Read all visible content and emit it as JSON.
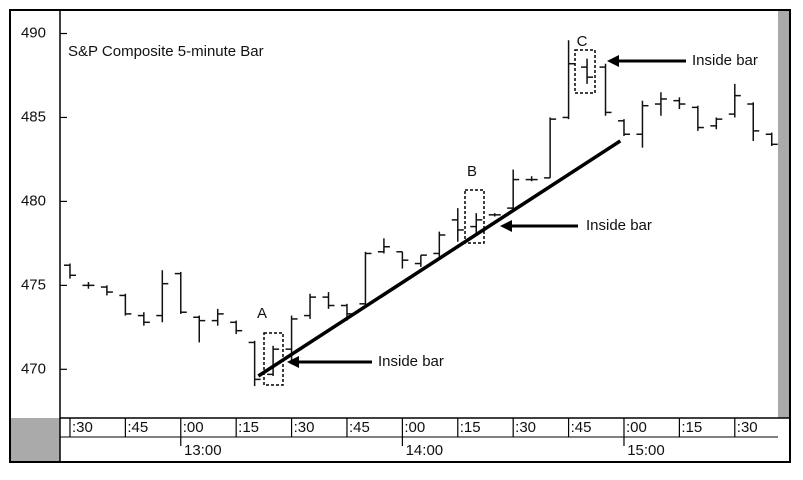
{
  "chart_data": {
    "type": "ohlc",
    "title": "S&P Composite 5-minute Bar",
    "color": "#111111",
    "x": [
      750,
      755,
      760,
      765,
      770,
      775,
      780,
      785,
      790,
      795,
      800,
      805,
      810,
      815,
      820,
      825,
      830,
      835,
      840,
      845,
      850,
      855,
      860,
      865,
      870,
      875,
      880,
      885,
      890,
      895,
      900,
      905,
      910,
      915,
      920,
      925,
      930,
      935,
      940
    ],
    "open": [
      476.2,
      475.0,
      474.9,
      474.4,
      473.2,
      473.2,
      475.7,
      473.1,
      472.9,
      472.8,
      471.6,
      469.7,
      471.2,
      473.2,
      474.3,
      473.8,
      473.9,
      477.0,
      477.0,
      476.3,
      476.9,
      478.9,
      478.5,
      479.2,
      479.6,
      481.3,
      481.4,
      485.0,
      488.0,
      488.0,
      484.8,
      484.0,
      485.8,
      486.0,
      485.6,
      484.5,
      485.2,
      485.8,
      484.0
    ],
    "high": [
      476.3,
      475.2,
      475.0,
      474.5,
      473.4,
      475.9,
      475.8,
      473.2,
      473.6,
      472.9,
      471.7,
      471.4,
      473.2,
      474.5,
      474.6,
      473.9,
      477.0,
      477.8,
      477.0,
      476.8,
      478.2,
      479.6,
      479.3,
      479.3,
      481.9,
      481.5,
      485.0,
      489.6,
      488.5,
      488.2,
      484.9,
      486.0,
      486.5,
      486.2,
      485.7,
      485.0,
      487.0,
      485.9,
      484.1
    ],
    "low": [
      475.4,
      474.8,
      474.4,
      473.2,
      472.6,
      472.8,
      473.3,
      471.6,
      472.6,
      472.1,
      469.0,
      469.6,
      470.3,
      473.0,
      473.6,
      472.9,
      473.8,
      476.9,
      476.0,
      476.1,
      476.7,
      477.6,
      478.0,
      479.1,
      479.5,
      481.2,
      481.4,
      484.9,
      487.0,
      485.1,
      483.9,
      483.2,
      485.1,
      485.5,
      484.2,
      484.3,
      485.0,
      483.6,
      483.3
    ],
    "close": [
      475.6,
      475.0,
      474.6,
      473.3,
      472.8,
      475.1,
      473.4,
      472.9,
      473.3,
      472.3,
      469.4,
      471.2,
      473.0,
      474.3,
      473.8,
      473.3,
      476.9,
      477.3,
      476.5,
      476.8,
      478.0,
      478.3,
      478.9,
      479.2,
      481.3,
      481.3,
      484.9,
      488.2,
      487.4,
      485.3,
      484.0,
      485.7,
      486.1,
      485.8,
      484.4,
      484.9,
      486.3,
      484.2,
      483.4
    ],
    "trendline": {
      "x": [
        801,
        899
      ],
      "values": [
        469.6,
        483.6
      ]
    },
    "annotations": [
      {
        "marker": "A",
        "text": "Inside bar"
      },
      {
        "marker": "B",
        "text": "Inside bar"
      },
      {
        "marker": "C",
        "text": "Inside bar"
      }
    ],
    "xlim": [
      747.3,
      941.7
    ],
    "xticks": [
      {
        "value": 750,
        "label": ":30"
      },
      {
        "value": 765,
        "label": ":45"
      },
      {
        "value": 780,
        "label": ":00"
      },
      {
        "value": 795,
        "label": ":15"
      },
      {
        "value": 810,
        "label": ":30"
      },
      {
        "value": 825,
        "label": ":45"
      },
      {
        "value": 840,
        "label": ":00"
      },
      {
        "value": 855,
        "label": ":15"
      },
      {
        "value": 870,
        "label": ":30"
      },
      {
        "value": 885,
        "label": ":45"
      },
      {
        "value": 900,
        "label": ":00"
      },
      {
        "value": 915,
        "label": ":15"
      },
      {
        "value": 930,
        "label": ":30"
      }
    ],
    "xticks_major": [
      {
        "value": 780,
        "label": "13:00"
      },
      {
        "value": 840,
        "label": "14:00"
      },
      {
        "value": 900,
        "label": "15:00"
      }
    ],
    "ylim": [
      467.1,
      491.4
    ],
    "yticks": [
      470,
      475,
      480,
      485,
      490
    ]
  }
}
